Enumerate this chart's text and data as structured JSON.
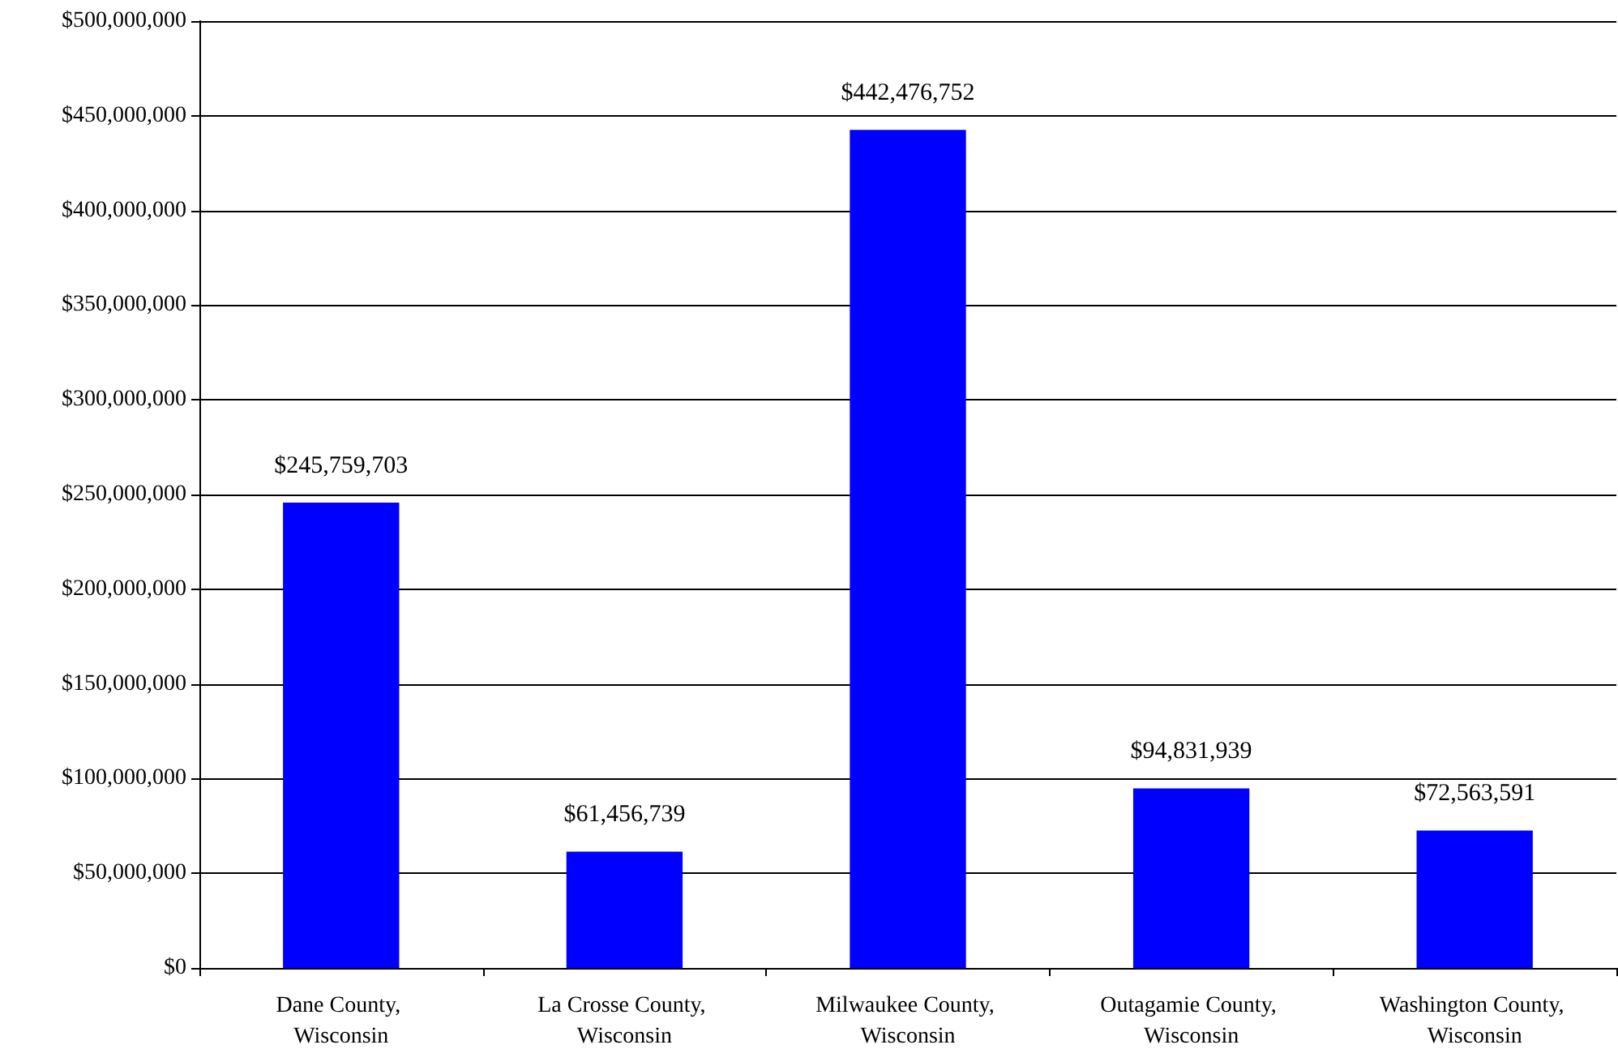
{
  "chart_data": {
    "type": "bar",
    "categories": [
      "Dane County, Wisconsin",
      "La Crosse County, Wisconsin",
      "Milwaukee County, Wisconsin",
      "Outagamie County, Wisconsin",
      "Washington County, Wisconsin"
    ],
    "values": [
      245759703,
      61456739,
      442476752,
      94831939,
      72563591
    ],
    "value_labels": [
      "$245,759,703",
      "$61,456,739",
      "$442,476,752",
      "$94,831,939",
      "$72,563,591"
    ],
    "color": "#0000ff",
    "ylim": [
      0,
      500000000
    ],
    "yticks": [
      {
        "value": 0,
        "label": "$0"
      },
      {
        "value": 50000000,
        "label": "$50,000,000"
      },
      {
        "value": 100000000,
        "label": "$100,000,000"
      },
      {
        "value": 150000000,
        "label": "$150,000,000"
      },
      {
        "value": 200000000,
        "label": "$200,000,000"
      },
      {
        "value": 250000000,
        "label": "$250,000,000"
      },
      {
        "value": 300000000,
        "label": "$300,000,000"
      },
      {
        "value": 350000000,
        "label": "$350,000,000"
      },
      {
        "value": 400000000,
        "label": "$400,000,000"
      },
      {
        "value": 450000000,
        "label": "$450,000,000"
      },
      {
        "value": 500000000,
        "label": "$500,000,000"
      }
    ],
    "grid": "y"
  }
}
